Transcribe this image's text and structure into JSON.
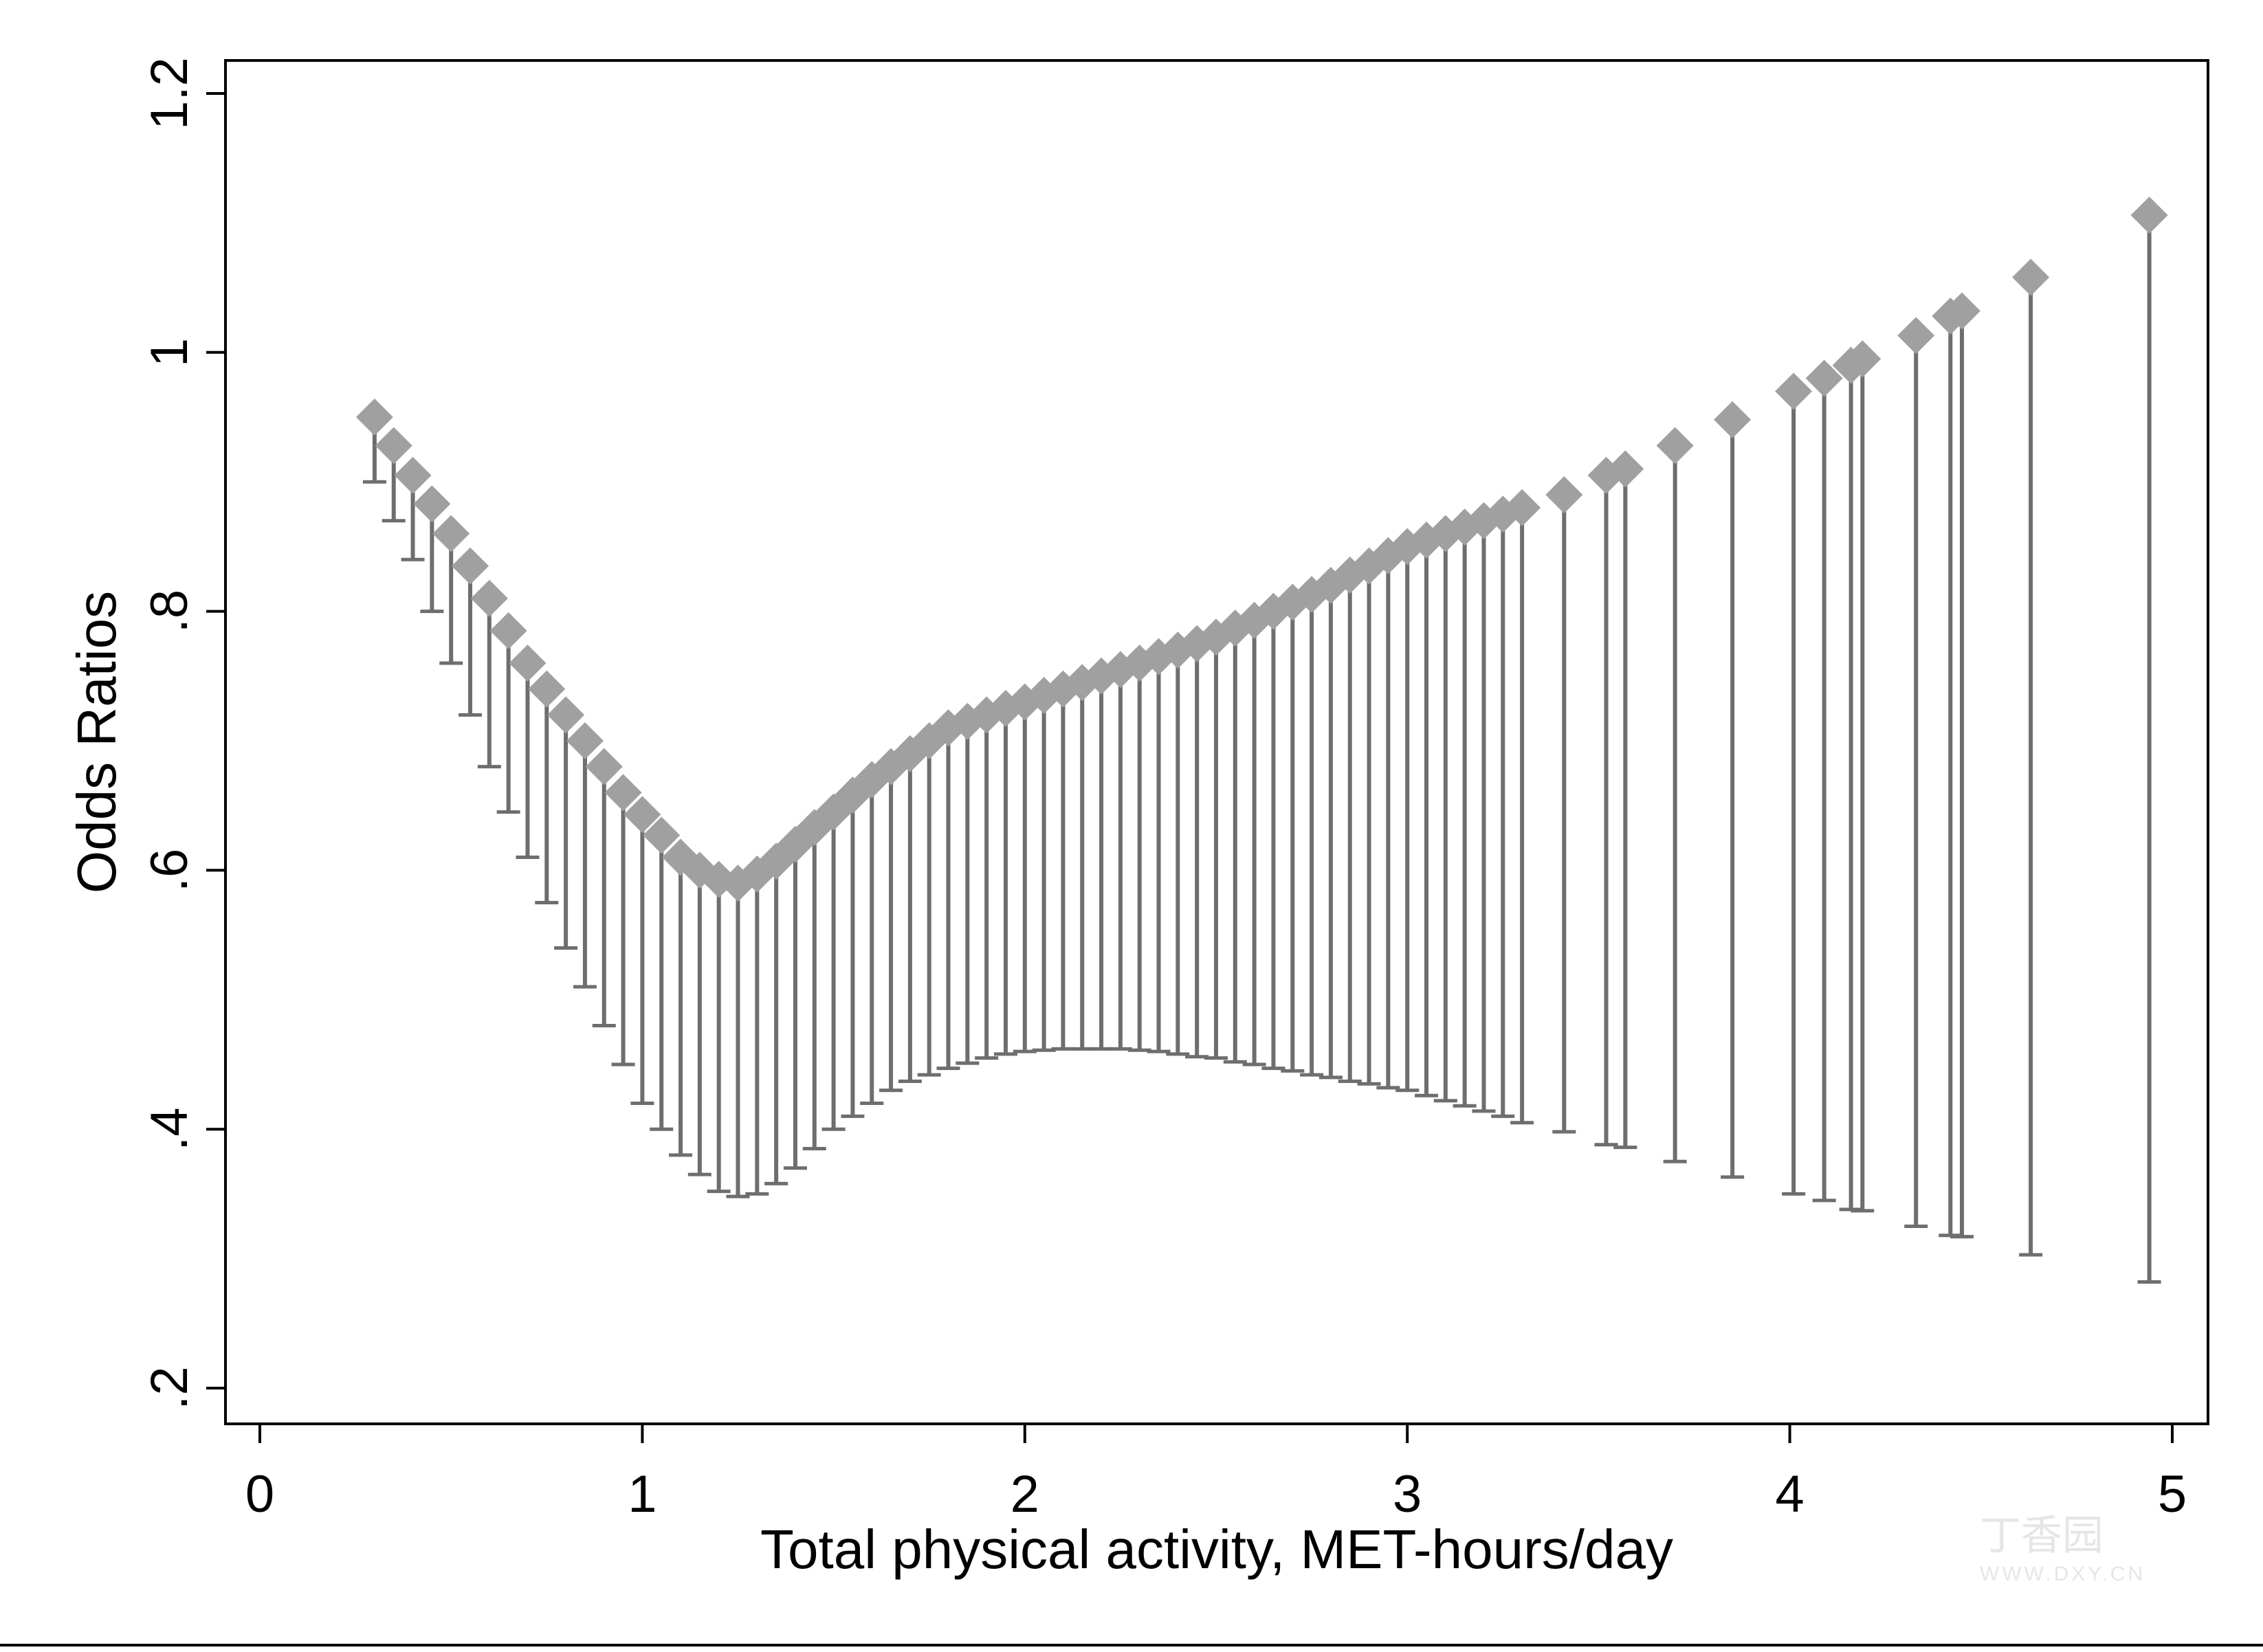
{
  "chart_data": {
    "type": "scatter",
    "subtype": "point estimates with lower confidence bounds",
    "xlabel": "Total physical activity, MET-hours/day",
    "ylabel": "Odds Ratios",
    "xlim": [
      0,
      5.1
    ],
    "ylim": [
      0.2,
      1.23
    ],
    "x_ticks": [
      0,
      1,
      2,
      3,
      4,
      5
    ],
    "x_tick_labels": [
      "0",
      "1",
      "2",
      "3",
      "4",
      "5"
    ],
    "y_ticks": [
      0.2,
      0.4,
      0.6,
      0.8,
      1.0,
      1.2
    ],
    "y_tick_labels": [
      ".2",
      ".4",
      ".6",
      ".8",
      "1",
      "1.2"
    ],
    "grid": false,
    "marker_color": "#a0a0a0",
    "bar_color": "#6e6e6e",
    "points": {
      "x": [
        0.3,
        0.35,
        0.4,
        0.45,
        0.5,
        0.55,
        0.6,
        0.65,
        0.7,
        0.75,
        0.8,
        0.85,
        0.9,
        0.95,
        1.0,
        1.05,
        1.1,
        1.15,
        1.2,
        1.25,
        1.3,
        1.35,
        1.4,
        1.45,
        1.5,
        1.55,
        1.6,
        1.65,
        1.7,
        1.75,
        1.8,
        1.85,
        1.9,
        1.95,
        2.0,
        2.05,
        2.1,
        2.15,
        2.2,
        2.25,
        2.3,
        2.35,
        2.4,
        2.45,
        2.5,
        2.55,
        2.6,
        2.65,
        2.7,
        2.75,
        2.8,
        2.85,
        2.9,
        2.95,
        3.0,
        3.05,
        3.1,
        3.15,
        3.2,
        3.25,
        3.3,
        3.41,
        3.52,
        3.57,
        3.7,
        3.85,
        4.01,
        4.09,
        4.16,
        4.19,
        4.33,
        4.42,
        4.45,
        4.63,
        4.94
      ],
      "or": [
        0.95,
        0.928,
        0.905,
        0.883,
        0.86,
        0.835,
        0.81,
        0.785,
        0.76,
        0.74,
        0.72,
        0.7,
        0.68,
        0.66,
        0.643,
        0.627,
        0.61,
        0.6,
        0.593,
        0.59,
        0.597,
        0.607,
        0.62,
        0.633,
        0.645,
        0.658,
        0.67,
        0.68,
        0.69,
        0.7,
        0.71,
        0.715,
        0.72,
        0.725,
        0.73,
        0.735,
        0.74,
        0.745,
        0.75,
        0.755,
        0.76,
        0.765,
        0.77,
        0.775,
        0.78,
        0.787,
        0.793,
        0.8,
        0.807,
        0.813,
        0.82,
        0.828,
        0.835,
        0.843,
        0.85,
        0.855,
        0.86,
        0.865,
        0.87,
        0.875,
        0.88,
        0.89,
        0.905,
        0.91,
        0.928,
        0.948,
        0.97,
        0.98,
        0.99,
        0.995,
        1.013,
        1.028,
        1.032,
        1.058,
        1.106
      ],
      "lower": [
        0.9,
        0.87,
        0.84,
        0.8,
        0.76,
        0.72,
        0.68,
        0.645,
        0.61,
        0.575,
        0.54,
        0.51,
        0.48,
        0.45,
        0.42,
        0.4,
        0.38,
        0.365,
        0.352,
        0.348,
        0.35,
        0.358,
        0.37,
        0.385,
        0.4,
        0.41,
        0.42,
        0.43,
        0.437,
        0.442,
        0.447,
        0.451,
        0.455,
        0.458,
        0.46,
        0.461,
        0.462,
        0.462,
        0.462,
        0.462,
        0.461,
        0.46,
        0.458,
        0.456,
        0.455,
        0.452,
        0.45,
        0.447,
        0.445,
        0.442,
        0.44,
        0.437,
        0.435,
        0.432,
        0.43,
        0.426,
        0.422,
        0.418,
        0.414,
        0.41,
        0.405,
        0.398,
        0.388,
        0.386,
        0.375,
        0.363,
        0.35,
        0.345,
        0.338,
        0.337,
        0.325,
        0.318,
        0.317,
        0.303,
        0.282
      ]
    }
  },
  "watermark": {
    "name": "丁香园",
    "url": "WWW.DXY.CN"
  }
}
